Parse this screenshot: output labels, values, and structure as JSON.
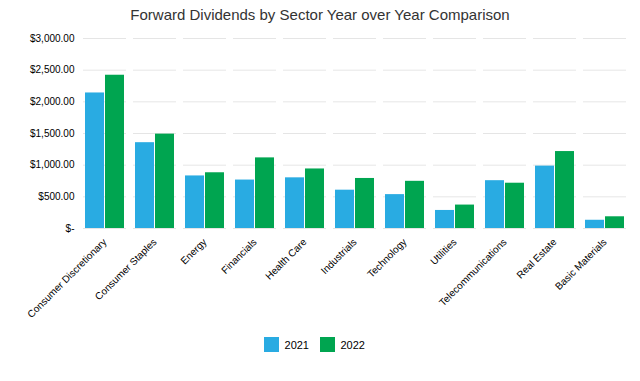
{
  "chart_data": {
    "type": "bar",
    "title": "Forward Dividends by Sector Year over Year Comparison",
    "categories": [
      "Consumer Discretionary",
      "Consumer Staples",
      "Energy",
      "Financials",
      "Health Care",
      "Industrials",
      "Technology",
      "Utilities",
      "Telecommunications",
      "Real Estate",
      "Basic Materials"
    ],
    "series": [
      {
        "name": "2021",
        "color": "#29ABE2",
        "values": [
          2140,
          1355,
          830,
          765,
          800,
          605,
          535,
          285,
          755,
          985,
          130
        ]
      },
      {
        "name": "2022",
        "color": "#00A550",
        "values": [
          2420,
          1490,
          880,
          1115,
          940,
          790,
          745,
          370,
          715,
          1215,
          185
        ]
      }
    ],
    "ylim": [
      0,
      3000
    ],
    "yticks": [
      {
        "value": 0,
        "label": "$-"
      },
      {
        "value": 500,
        "label": "$500.00"
      },
      {
        "value": 1000,
        "label": "$1,000.00"
      },
      {
        "value": 1500,
        "label": "$1,500.00"
      },
      {
        "value": 2000,
        "label": "$2,000.00"
      },
      {
        "value": 2500,
        "label": "$2,500.00"
      },
      {
        "value": 3000,
        "label": "$3,000.00"
      }
    ],
    "grid": true,
    "legend": "bottom"
  }
}
